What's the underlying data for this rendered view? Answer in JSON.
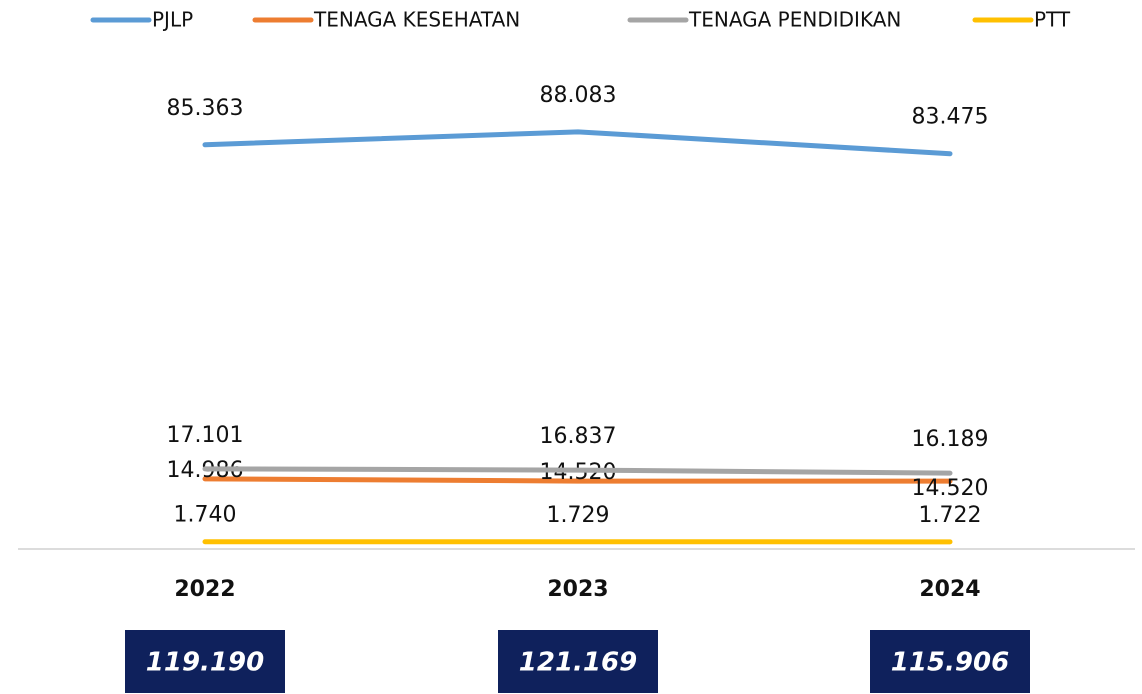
{
  "chart_data": {
    "type": "line",
    "categories": [
      "2022",
      "2023",
      "2024"
    ],
    "series": [
      {
        "name": "PJLP",
        "color": "#5b9bd5",
        "values": [
          85363,
          88083,
          83475
        ],
        "value_labels": [
          "85.363",
          "88.083",
          "83.475"
        ]
      },
      {
        "name": "TENAGA KESEHATAN",
        "color": "#ed7d31",
        "values": [
          14986,
          14520,
          14520
        ],
        "value_labels": [
          "14.986",
          "14.520",
          "14.520"
        ]
      },
      {
        "name": "TENAGA PENDIDIKAN",
        "color": "#a5a5a5",
        "values": [
          17101,
          16837,
          16189
        ],
        "value_labels": [
          "17.101",
          "16.837",
          "16.189"
        ]
      },
      {
        "name": "PTT",
        "color": "#ffc000",
        "values": [
          1740,
          1729,
          1722
        ],
        "value_labels": [
          "1.740",
          "1.729",
          "1.722"
        ]
      }
    ],
    "ylim": [
      0,
      95000
    ],
    "legend": "top",
    "totals": [
      {
        "value": 119190,
        "label": "119.190"
      },
      {
        "value": 121169,
        "label": "121.169"
      },
      {
        "value": 115906,
        "label": "115.906"
      }
    ],
    "totals_color": "#0f215c"
  }
}
